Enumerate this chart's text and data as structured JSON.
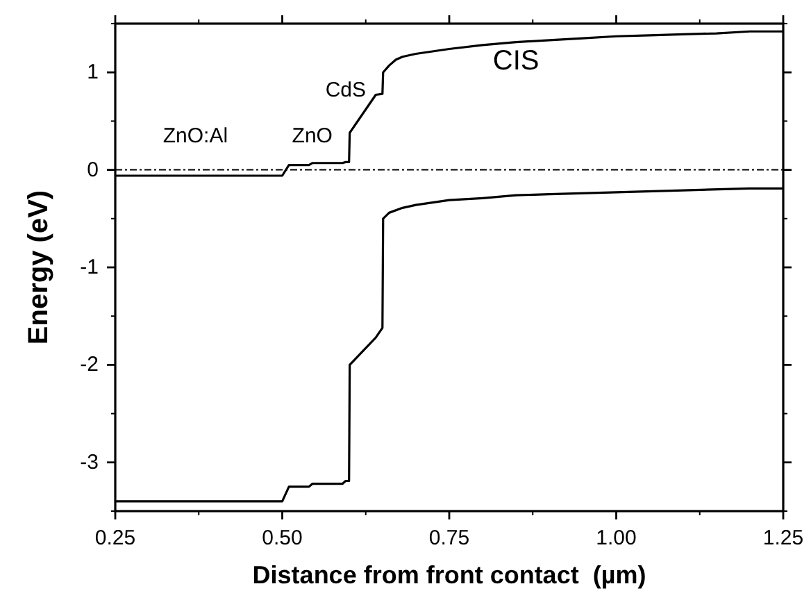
{
  "chart_data": {
    "type": "line",
    "xlabel": "Distance from front contact  (µm)",
    "ylabel": "Energy (eV)",
    "xlim": [
      0.25,
      1.25
    ],
    "xticks": [
      0.25,
      {
        "value": 0.5,
        "label": "0.50"
      },
      0.75,
      {
        "value": 1,
        "label": "1.00"
      },
      1.25
    ],
    "ylim": [
      -3.5,
      1.5
    ],
    "yticks": [
      -3,
      -2,
      -1,
      0,
      1
    ],
    "series": [
      {
        "color": "#000000",
        "x": [
          0.25,
          0.5,
          0.51,
          0.54,
          0.545,
          0.59,
          0.595,
          0.6,
          0.601,
          0.64,
          0.65,
          0.651,
          0.66,
          0.67,
          0.68,
          0.7,
          0.75,
          0.8,
          0.85,
          0.9,
          0.95,
          1.0,
          1.05,
          1.1,
          1.15,
          1.2,
          1.25
        ],
        "values": [
          -0.06,
          -0.06,
          0.05,
          0.05,
          0.07,
          0.07,
          0.08,
          0.08,
          0.38,
          0.77,
          0.78,
          1.0,
          1.07,
          1.13,
          1.16,
          1.19,
          1.24,
          1.28,
          1.31,
          1.33,
          1.35,
          1.37,
          1.38,
          1.39,
          1.4,
          1.42,
          1.42
        ]
      },
      {
        "color": "#000000",
        "x": [
          0.25,
          0.5,
          0.51,
          0.54,
          0.545,
          0.59,
          0.595,
          0.6,
          0.601,
          0.64,
          0.65,
          0.651,
          0.66,
          0.68,
          0.7,
          0.75,
          0.8,
          0.85,
          0.9,
          1.0,
          1.1,
          1.2,
          1.25
        ],
        "values": [
          -3.4,
          -3.4,
          -3.25,
          -3.25,
          -3.22,
          -3.22,
          -3.19,
          -3.19,
          -2.0,
          -1.72,
          -1.62,
          -0.5,
          -0.44,
          -0.39,
          -0.36,
          -0.31,
          -0.29,
          -0.26,
          -0.25,
          -0.23,
          -0.21,
          -0.19,
          -0.19
        ]
      }
    ],
    "ref_lines": [
      {
        "axis": "y",
        "value": 0,
        "color": "#000000",
        "line_style": "dashdot"
      }
    ],
    "annotations": [
      "ZnO:Al",
      "ZnO",
      "CdS",
      "CIS"
    ],
    "grid": false,
    "marker": "none",
    "line_style": "solid"
  }
}
